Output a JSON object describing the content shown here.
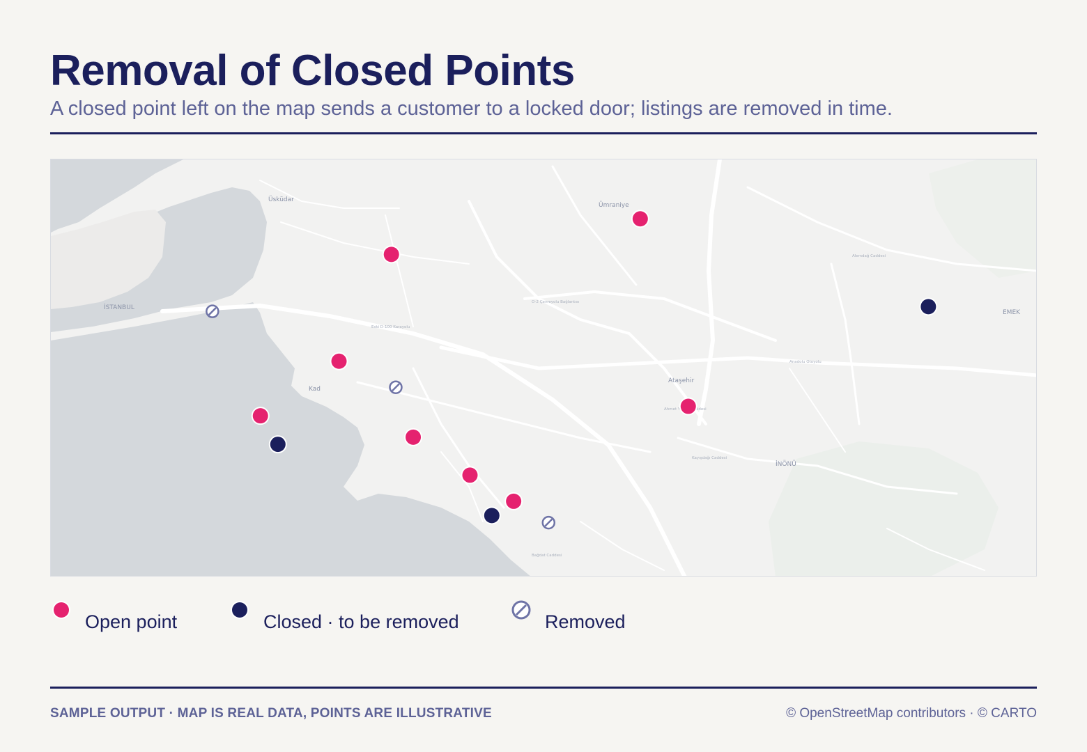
{
  "header": {
    "title": "Removal of Closed Points",
    "subtitle": "A closed point left on the map sends a customer to a locked door; listings are removed in time."
  },
  "map": {
    "place_labels": [
      "Üsküdar",
      "İSTANBUL",
      "Ümraniye",
      "Ataşehir",
      "Kad",
      "EMEK",
      "İNÖNÜ"
    ],
    "road_labels": [
      "Eski D-100 Karayolu",
      "O-2 Çevreyolu Bağlantısı",
      "Anadolu Otoyolu",
      "Ahmet Yesevi Caddesi",
      "Alemdağ Caddesi",
      "Kayışdağı Caddesi",
      "Bağdat Caddesi"
    ],
    "points": [
      {
        "id": "p1",
        "status": "open",
        "lat": 41.0275,
        "lon": 29.113
      },
      {
        "id": "p2",
        "status": "open",
        "lat": 41.02,
        "lon": 29.056
      },
      {
        "id": "p3",
        "status": "closed",
        "lat": 41.009,
        "lon": 29.179
      },
      {
        "id": "p4",
        "status": "removed",
        "lat": 41.008,
        "lon": 29.015
      },
      {
        "id": "p5",
        "status": "open",
        "lat": 40.9975,
        "lon": 29.044
      },
      {
        "id": "p6",
        "status": "removed",
        "lat": 40.992,
        "lon": 29.057
      },
      {
        "id": "p7",
        "status": "open",
        "lat": 40.988,
        "lon": 29.124
      },
      {
        "id": "p8",
        "status": "open",
        "lat": 40.986,
        "lon": 29.026
      },
      {
        "id": "p9",
        "status": "open",
        "lat": 40.9815,
        "lon": 29.061
      },
      {
        "id": "p10",
        "status": "closed",
        "lat": 40.98,
        "lon": 29.03
      },
      {
        "id": "p11",
        "status": "open",
        "lat": 40.9735,
        "lon": 29.074
      },
      {
        "id": "p12",
        "status": "open",
        "lat": 40.968,
        "lon": 29.084
      },
      {
        "id": "p13",
        "status": "closed",
        "lat": 40.965,
        "lon": 29.079
      },
      {
        "id": "p14",
        "status": "removed",
        "lat": 40.9635,
        "lon": 29.092
      }
    ]
  },
  "legend": {
    "open_label": "Open point",
    "closed_label": "Closed · to be removed",
    "removed_label": "Removed"
  },
  "colors": {
    "open": "#e5226f",
    "closed": "#1b1f5c",
    "removed": "#6e73a6",
    "water": "#d4d8dc",
    "land": "#f2f2f1"
  },
  "footer": {
    "note": "SAMPLE OUTPUT · MAP IS REAL DATA, POINTS ARE ILLUSTRATIVE",
    "attribution": "© OpenStreetMap contributors · © CARTO"
  }
}
